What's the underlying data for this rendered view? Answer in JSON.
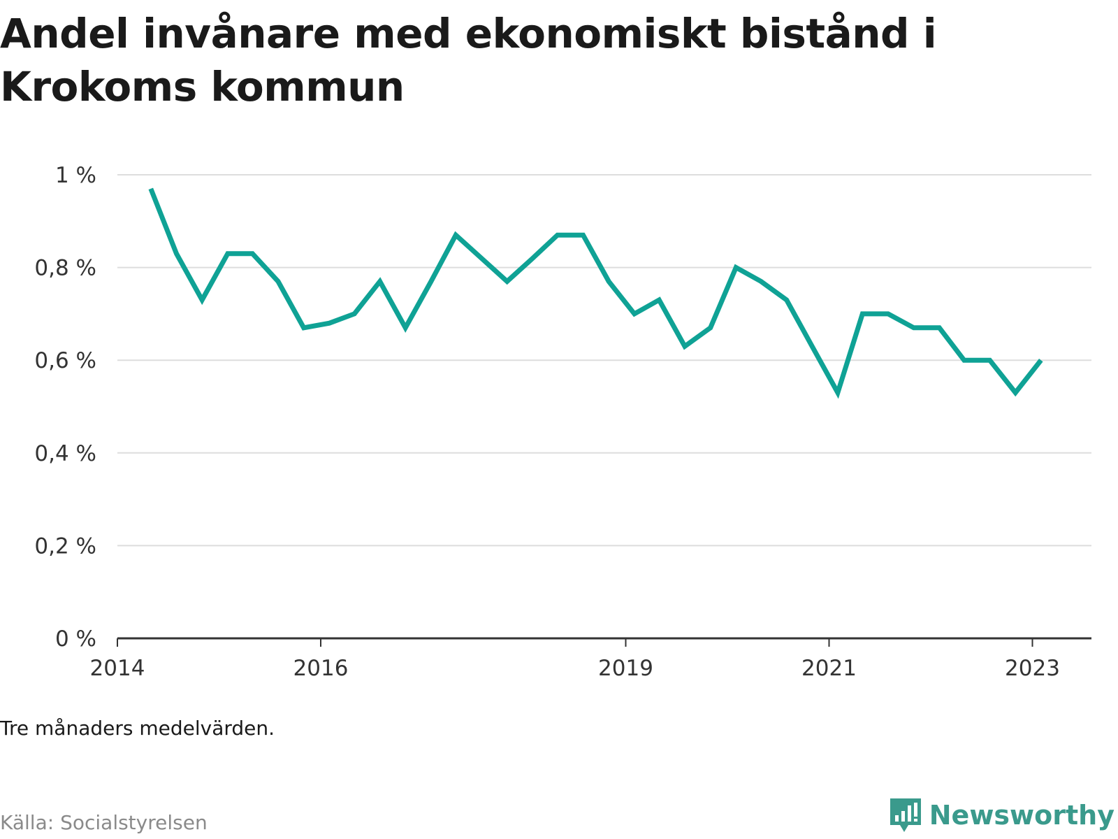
{
  "title": "Andel invånare med ekonomiskt bistånd i Krokoms kommun",
  "note": "Tre månaders medelvärden.",
  "source": "Källa: Socialstyrelsen",
  "brand": {
    "name": "Newsworthy",
    "icon": "bar-chart-speech-bubble-icon",
    "color": "#3a9a8c"
  },
  "colors": {
    "line": "#0fa295",
    "grid": "#dddddd",
    "axis": "#333333"
  },
  "chart_data": {
    "type": "line",
    "title": "Andel invånare med ekonomiskt bistånd i Krokoms kommun",
    "xlabel": "",
    "ylabel": "",
    "ylim": [
      0,
      1
    ],
    "xlim": [
      "2014-01-01",
      "2023-08-01"
    ],
    "grid": true,
    "y_ticks": [
      {
        "value": 0,
        "label": "0 %"
      },
      {
        "value": 0.2,
        "label": "0,2 %"
      },
      {
        "value": 0.4,
        "label": "0,4 %"
      },
      {
        "value": 0.6,
        "label": "0,6 %"
      },
      {
        "value": 0.8,
        "label": "0,8 %"
      },
      {
        "value": 1,
        "label": "1 %"
      }
    ],
    "x_ticks": [
      {
        "value": "2014-01-01",
        "label": "2014"
      },
      {
        "value": "2016-01-01",
        "label": "2016"
      },
      {
        "value": "2019-01-01",
        "label": "2019"
      },
      {
        "value": "2021-01-01",
        "label": "2021"
      },
      {
        "value": "2023-01-01",
        "label": "2023"
      }
    ],
    "series": [
      {
        "points": [
          {
            "x": "2014-05-01",
            "y": 0.97
          },
          {
            "x": "2014-08-01",
            "y": 0.83
          },
          {
            "x": "2014-11-01",
            "y": 0.73
          },
          {
            "x": "2015-02-01",
            "y": 0.83
          },
          {
            "x": "2015-05-01",
            "y": 0.83
          },
          {
            "x": "2015-08-01",
            "y": 0.77
          },
          {
            "x": "2015-11-01",
            "y": 0.67
          },
          {
            "x": "2016-02-01",
            "y": 0.68
          },
          {
            "x": "2016-05-01",
            "y": 0.7
          },
          {
            "x": "2016-08-01",
            "y": 0.77
          },
          {
            "x": "2016-11-01",
            "y": 0.67
          },
          {
            "x": "2017-02-01",
            "y": 0.77
          },
          {
            "x": "2017-05-01",
            "y": 0.87
          },
          {
            "x": "2017-08-01",
            "y": 0.82
          },
          {
            "x": "2017-11-01",
            "y": 0.77
          },
          {
            "x": "2018-02-01",
            "y": 0.82
          },
          {
            "x": "2018-05-01",
            "y": 0.87
          },
          {
            "x": "2018-08-01",
            "y": 0.87
          },
          {
            "x": "2018-11-01",
            "y": 0.77
          },
          {
            "x": "2019-02-01",
            "y": 0.7
          },
          {
            "x": "2019-05-01",
            "y": 0.73
          },
          {
            "x": "2019-08-01",
            "y": 0.63
          },
          {
            "x": "2019-11-01",
            "y": 0.67
          },
          {
            "x": "2020-02-01",
            "y": 0.8
          },
          {
            "x": "2020-05-01",
            "y": 0.77
          },
          {
            "x": "2020-08-01",
            "y": 0.73
          },
          {
            "x": "2020-11-01",
            "y": 0.63
          },
          {
            "x": "2021-02-01",
            "y": 0.53
          },
          {
            "x": "2021-05-01",
            "y": 0.7
          },
          {
            "x": "2021-08-01",
            "y": 0.7
          },
          {
            "x": "2021-11-01",
            "y": 0.67
          },
          {
            "x": "2022-02-01",
            "y": 0.67
          },
          {
            "x": "2022-05-01",
            "y": 0.6
          },
          {
            "x": "2022-08-01",
            "y": 0.6
          },
          {
            "x": "2022-11-01",
            "y": 0.53
          },
          {
            "x": "2023-02-01",
            "y": 0.6
          }
        ]
      }
    ]
  }
}
